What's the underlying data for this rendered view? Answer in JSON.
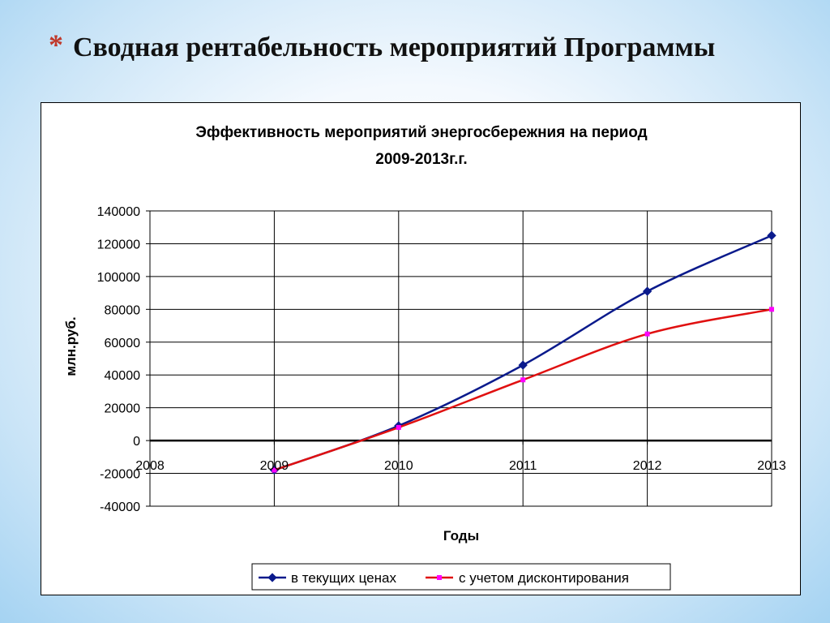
{
  "slide": {
    "bullet": "*",
    "title": "Сводная рентабельность мероприятий Программы"
  },
  "chart_data": {
    "type": "line",
    "title_line1": "Эффективность мероприятий энергосбережния на период",
    "title_line2": "2009-2013г.г.",
    "xlabel": "Годы",
    "ylabel": "млн.руб.",
    "x": [
      2009,
      2010,
      2011,
      2012,
      2013
    ],
    "x_ticks": [
      "2008",
      "2009",
      "2010",
      "2011",
      "2012",
      "2013"
    ],
    "xlim": [
      2008,
      2013
    ],
    "ylim": [
      -40000,
      140000
    ],
    "y_ticks": [
      "140000",
      "120000",
      "100000",
      "80000",
      "60000",
      "40000",
      "20000",
      "0",
      "-20000",
      "-40000"
    ],
    "grid": true,
    "legend_position": "bottom",
    "series": [
      {
        "name": "в текущих ценах",
        "values": [
          -18000,
          9000,
          46000,
          91000,
          125000
        ],
        "color": "#0a1a8c",
        "marker": "diamond"
      },
      {
        "name": "с учетом дисконтирования",
        "values": [
          -18000,
          8000,
          37000,
          65000,
          80000
        ],
        "color": "#e01010",
        "marker": "square",
        "marker_color": "#ff00ff"
      }
    ]
  }
}
